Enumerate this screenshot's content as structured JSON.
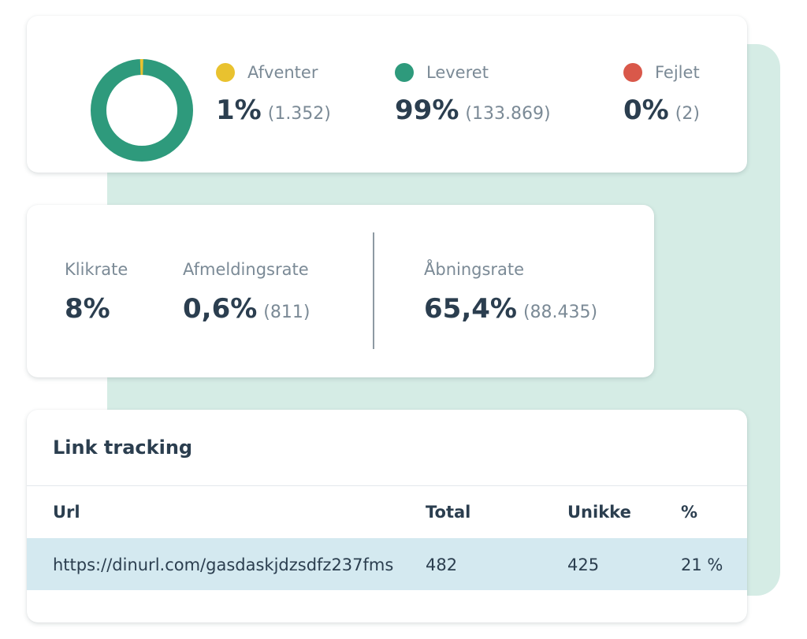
{
  "delivery": {
    "donut": {
      "color_delivered": "#2e9a7c",
      "color_pending": "#e9c22f"
    },
    "stats": [
      {
        "label": "Afventer",
        "percent": "1%",
        "count": "(1.352)",
        "color": "#e9c22f"
      },
      {
        "label": "Leveret",
        "percent": "99%",
        "count": "(133.869)",
        "color": "#2e9a7c"
      },
      {
        "label": "Fejlet",
        "percent": "0%",
        "count": "(2)",
        "color": "#d9584a"
      }
    ]
  },
  "rates": {
    "click": {
      "label": "Klikrate",
      "value": "8%"
    },
    "unsubscribe": {
      "label": "Afmeldingsrate",
      "value": "0,6%",
      "count": "(811)"
    },
    "open": {
      "label": "Åbningsrate",
      "value": "65,4%",
      "count": "(88.435)"
    }
  },
  "link_tracking": {
    "title": "Link tracking",
    "columns": [
      "Url",
      "Total",
      "Unikke",
      "%"
    ],
    "rows": [
      {
        "url": "https://dinurl.com/gasdaskjdzsdfz237fms",
        "total": "482",
        "unique": "425",
        "percent": "21 %"
      }
    ]
  }
}
